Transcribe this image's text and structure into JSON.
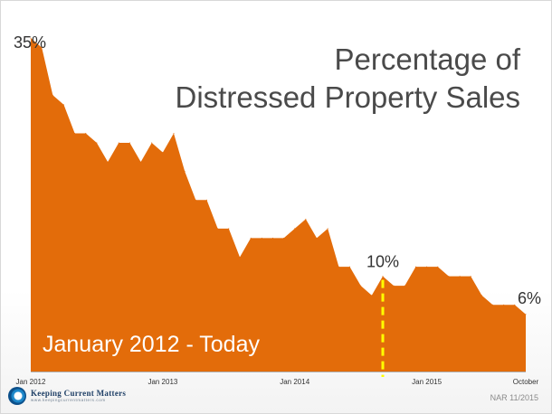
{
  "title_lines": [
    "Percentage of",
    "Distressed Property Sales"
  ],
  "footer": {
    "logo_name": "Keeping Current Matters",
    "logo_url": "www.keepingcurrentmatters.com",
    "logo_icon": "kcm-swirl-icon",
    "source": "NAR 11/2015"
  },
  "chart_data": {
    "type": "area",
    "title": "Percentage of Distressed Property Sales",
    "subtitle": "January 2012 - Today",
    "fill_color": "#E36C0A",
    "marker_color": "#FFFF00",
    "x_tick_labels": [
      "Jan 2012",
      "Jan 2013",
      "Jan 2014",
      "Jan 2015",
      "October"
    ],
    "x_tick_index": [
      0,
      12,
      24,
      36,
      45
    ],
    "ylim": [
      0,
      37
    ],
    "grid": false,
    "legend": "none",
    "values": [
      35,
      34,
      29,
      28,
      25,
      25,
      24,
      22,
      24,
      24,
      22,
      24,
      23,
      25,
      21,
      18,
      18,
      15,
      15,
      12,
      14,
      14,
      14,
      14,
      15,
      16,
      14,
      15,
      11,
      11,
      9,
      8,
      10,
      9,
      9,
      11,
      11,
      11,
      10,
      10,
      10,
      8,
      7,
      7,
      7,
      6
    ],
    "annotations": [
      {
        "index": 0,
        "text": "35%"
      },
      {
        "index": 32,
        "text": "10%",
        "marker": "dashed-line"
      },
      {
        "index": 45,
        "text": "6%"
      }
    ]
  }
}
